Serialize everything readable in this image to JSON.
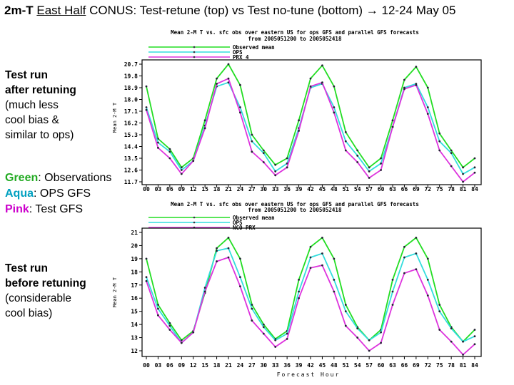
{
  "slide": {
    "title_prefix": "2m-T",
    "title_underlined": "East Half",
    "title_rest": "CONUS:  Test-retune (top)  vs  Test no-tune (bottom)",
    "title_arrow": "→",
    "title_dates": "12-24 May 05",
    "top_label": [
      "Test run",
      "after retuning",
      "(much less",
      "cool bias &",
      "similar to ops)"
    ],
    "bottom_label": [
      "Test run",
      "before retuning",
      "(considerable",
      "cool bias)"
    ],
    "key": [
      {
        "word": "Green",
        "rest": ": Observations",
        "color": "#22aa22"
      },
      {
        "word": "Aqua",
        "rest": ":  OPS GFS",
        "color": "#00a0c0"
      },
      {
        "word": "Pink",
        "rest": ":   Test GFS",
        "color": "#cc00cc"
      }
    ]
  },
  "chart_data": [
    {
      "type": "line",
      "title": "Mean 2-M T vs. sfc obs over eastern US for ops GFS and parallel GFS forecasts",
      "subtitle": "from 2005051200 to 2005052418",
      "ylabel": "Mean 2-M T",
      "xlabel": "",
      "ylim": [
        11.7,
        20.7
      ],
      "yticks": [
        "20.7",
        "19.8",
        "18.9",
        "18.0",
        "17.1",
        "16.2",
        "15.3",
        "14.4",
        "13.5",
        "12.6",
        "11.7"
      ],
      "categories": [
        "00",
        "03",
        "06",
        "09",
        "12",
        "15",
        "18",
        "21",
        "24",
        "27",
        "30",
        "33",
        "36",
        "39",
        "42",
        "45",
        "48",
        "51",
        "54",
        "57",
        "60",
        "63",
        "66",
        "69",
        "72",
        "75",
        "78",
        "81",
        "84"
      ],
      "series": [
        {
          "name": "Observed mean",
          "color": "#22dd22",
          "values": [
            19.0,
            15.0,
            14.2,
            12.8,
            13.5,
            16.4,
            19.6,
            20.7,
            19.1,
            15.3,
            14.1,
            13.0,
            13.5,
            16.4,
            19.6,
            20.6,
            19.0,
            15.5,
            14.1,
            12.8,
            13.5,
            16.4,
            19.5,
            20.5,
            18.9,
            15.4,
            14.1,
            12.8,
            13.5
          ]
        },
        {
          "name": "OPS",
          "color": "#33dddd",
          "values": [
            17.4,
            14.7,
            14.0,
            12.6,
            13.3,
            16.0,
            19.0,
            19.3,
            17.4,
            14.8,
            13.9,
            12.5,
            13.1,
            15.8,
            18.9,
            19.2,
            17.4,
            14.8,
            13.7,
            12.5,
            13.1,
            15.9,
            18.9,
            19.2,
            17.4,
            14.8,
            13.9,
            12.3,
            12.8
          ]
        },
        {
          "name": "PRX 4",
          "color": "#dd33dd",
          "values": [
            17.2,
            14.3,
            13.5,
            12.3,
            13.3,
            15.8,
            19.2,
            19.6,
            17.0,
            14.0,
            13.2,
            12.2,
            12.8,
            15.6,
            19.0,
            19.3,
            17.0,
            14.1,
            13.2,
            12.0,
            12.6,
            15.9,
            18.8,
            19.1,
            16.9,
            14.1,
            12.9,
            11.7,
            12.4
          ]
        }
      ]
    },
    {
      "type": "line",
      "title": "Mean 2-M T vs. sfc obs over eastern US for ops GFS and parallel GFS forecasts",
      "subtitle": "from 2005051200 to 2005052418",
      "ylabel": "Mean 2-M T",
      "xlabel": "Forecast Hour",
      "ylim": [
        12,
        21
      ],
      "yticks": [
        "21",
        "20",
        "19",
        "18",
        "17",
        "16",
        "15",
        "14",
        "13",
        "12"
      ],
      "categories": [
        "00",
        "03",
        "06",
        "09",
        "12",
        "15",
        "18",
        "21",
        "24",
        "27",
        "30",
        "33",
        "36",
        "39",
        "42",
        "45",
        "48",
        "51",
        "54",
        "57",
        "60",
        "63",
        "66",
        "69",
        "72",
        "75",
        "78",
        "81",
        "84"
      ],
      "series": [
        {
          "name": "Observed mean",
          "color": "#22dd22",
          "values": [
            19.0,
            15.5,
            14.1,
            12.8,
            13.5,
            16.4,
            19.8,
            20.6,
            19.0,
            15.5,
            14.0,
            12.9,
            13.5,
            17.4,
            19.9,
            20.6,
            19.0,
            15.5,
            13.8,
            12.8,
            13.6,
            17.4,
            19.9,
            20.6,
            19.0,
            15.5,
            13.8,
            12.7,
            13.6
          ]
        },
        {
          "name": "OPS",
          "color": "#33dddd",
          "values": [
            17.6,
            15.2,
            13.9,
            12.6,
            13.4,
            16.8,
            19.6,
            19.8,
            17.6,
            15.2,
            13.8,
            12.8,
            13.3,
            16.5,
            19.1,
            19.4,
            17.4,
            15.0,
            13.7,
            12.8,
            13.4,
            16.5,
            19.1,
            19.4,
            17.4,
            15.0,
            13.7,
            12.7,
            13.1
          ]
        },
        {
          "name": "NCO PRX",
          "color": "#dd33dd",
          "values": [
            17.3,
            14.7,
            13.6,
            12.6,
            13.4,
            16.5,
            18.8,
            19.1,
            16.9,
            14.3,
            13.3,
            12.3,
            12.9,
            16.0,
            18.3,
            18.5,
            16.5,
            13.9,
            13.0,
            12.0,
            12.6,
            15.5,
            17.9,
            18.2,
            16.2,
            13.6,
            12.7,
            11.7,
            12.5
          ]
        }
      ]
    }
  ]
}
